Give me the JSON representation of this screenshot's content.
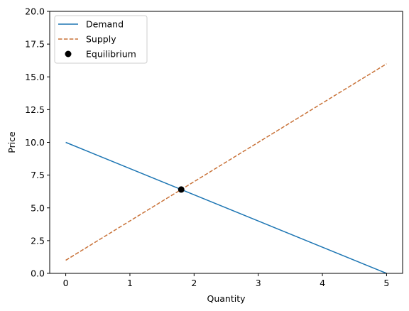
{
  "chart_data": {
    "type": "line",
    "xlabel": "Quantity",
    "ylabel": "Price",
    "xlim": [
      -0.25,
      5.25
    ],
    "ylim": [
      0,
      20
    ],
    "xticks": [
      0,
      1,
      2,
      3,
      4,
      5
    ],
    "xtick_labels": [
      "0",
      "1",
      "2",
      "3",
      "4",
      "5"
    ],
    "yticks": [
      0,
      2.5,
      5,
      7.5,
      10,
      12.5,
      15,
      17.5,
      20
    ],
    "ytick_labels": [
      "0.0",
      "2.5",
      "5.0",
      "7.5",
      "10.0",
      "12.5",
      "15.0",
      "17.5",
      "20.0"
    ],
    "grid": false,
    "legend_position": "upper-left",
    "series": [
      {
        "name": "Demand",
        "style": "solid",
        "color": "#1f77b4",
        "x": [
          0,
          5
        ],
        "y": [
          10,
          0
        ]
      },
      {
        "name": "Supply",
        "style": "dashed",
        "color": "#c87137",
        "x": [
          0,
          5
        ],
        "y": [
          1,
          16
        ]
      }
    ],
    "points": [
      {
        "name": "Equilibrium",
        "color": "#000000",
        "x": 1.8,
        "y": 6.4
      }
    ]
  }
}
